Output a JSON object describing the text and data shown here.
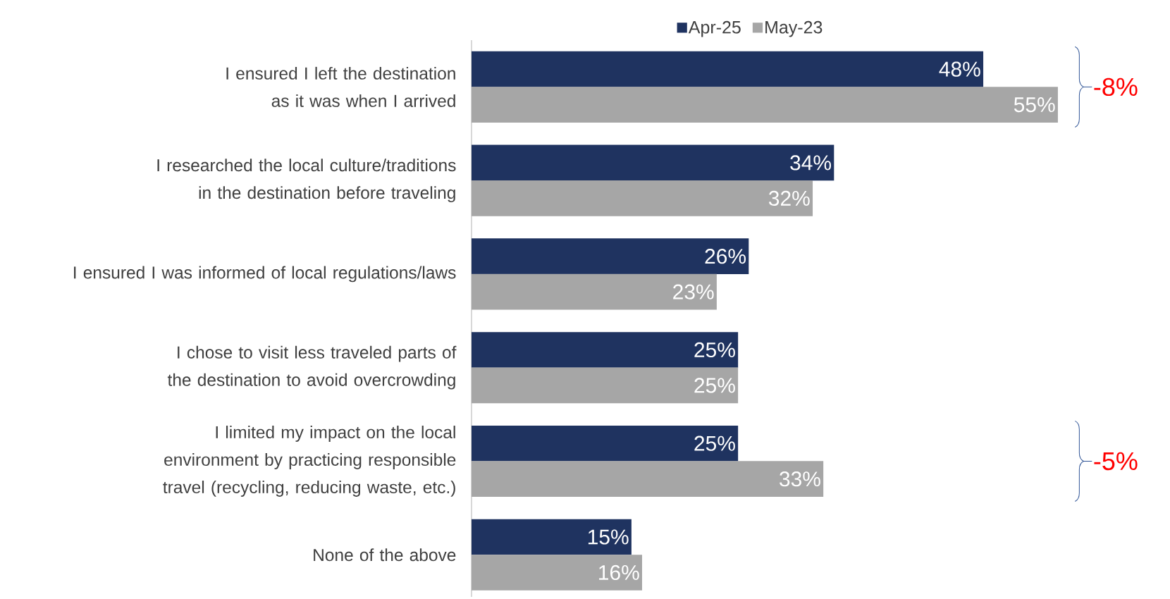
{
  "chart_data": {
    "type": "bar",
    "orientation": "horizontal",
    "legend": "top",
    "categories": [
      "I ensured I left the destination as it was when I arrived",
      "I researched the local culture/traditions in the destination before traveling",
      "I ensured I was informed of local regulations/laws",
      "I chose to visit less traveled parts of the destination to avoid overcrowding",
      "I limited my impact on the local environment by practicing responsible travel (recycling, reducing waste, etc.)",
      "None of the above"
    ],
    "series": [
      {
        "name": "Apr-25",
        "color": "#1f3360",
        "values": [
          48,
          34,
          26,
          25,
          25,
          15
        ],
        "value_labels": [
          "48%",
          "34%",
          "26%",
          "25%",
          "25%",
          "15%"
        ]
      },
      {
        "name": "May-23",
        "color": "#a6a6a6",
        "values": [
          55,
          32,
          23,
          25,
          33,
          16
        ],
        "value_labels": [
          "55%",
          "32%",
          "23%",
          "25%",
          "33%",
          "16%"
        ]
      }
    ],
    "annotations": [
      "-8%",
      "-5%"
    ]
  }
}
